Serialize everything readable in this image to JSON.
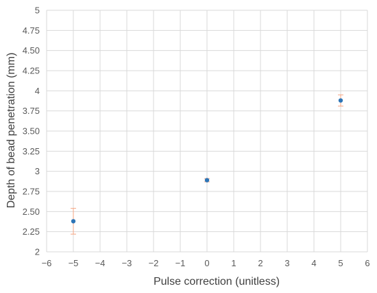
{
  "chart_data": {
    "type": "scatter",
    "xlabel": "Pulse correction (unitless)",
    "ylabel": "Depth of bead penetration (mm)",
    "xlim": [
      -6,
      6
    ],
    "ylim": [
      2,
      5
    ],
    "x_ticks": [
      "−6",
      "−5",
      "−4",
      "−3",
      "−2",
      "−1",
      "0",
      "1",
      "2",
      "3",
      "4",
      "5",
      "6"
    ],
    "y_ticks": [
      "2",
      "2.25",
      "2.50",
      "2.75",
      "3",
      "3.25",
      "3.50",
      "3.75",
      "4",
      "4.25",
      "4.50",
      "4.75",
      "5"
    ],
    "grid": true,
    "points": [
      {
        "x": -5,
        "y": 2.38,
        "err_low": 2.22,
        "err_high": 2.54
      },
      {
        "x": 0,
        "y": 2.89,
        "err_low": 2.87,
        "err_high": 2.91
      },
      {
        "x": 5,
        "y": 3.88,
        "err_low": 3.81,
        "err_high": 3.95
      }
    ],
    "marker_color": "#2e75b6",
    "errorbar_color": "#f4a582",
    "grid_color": "#d9d9d9"
  }
}
